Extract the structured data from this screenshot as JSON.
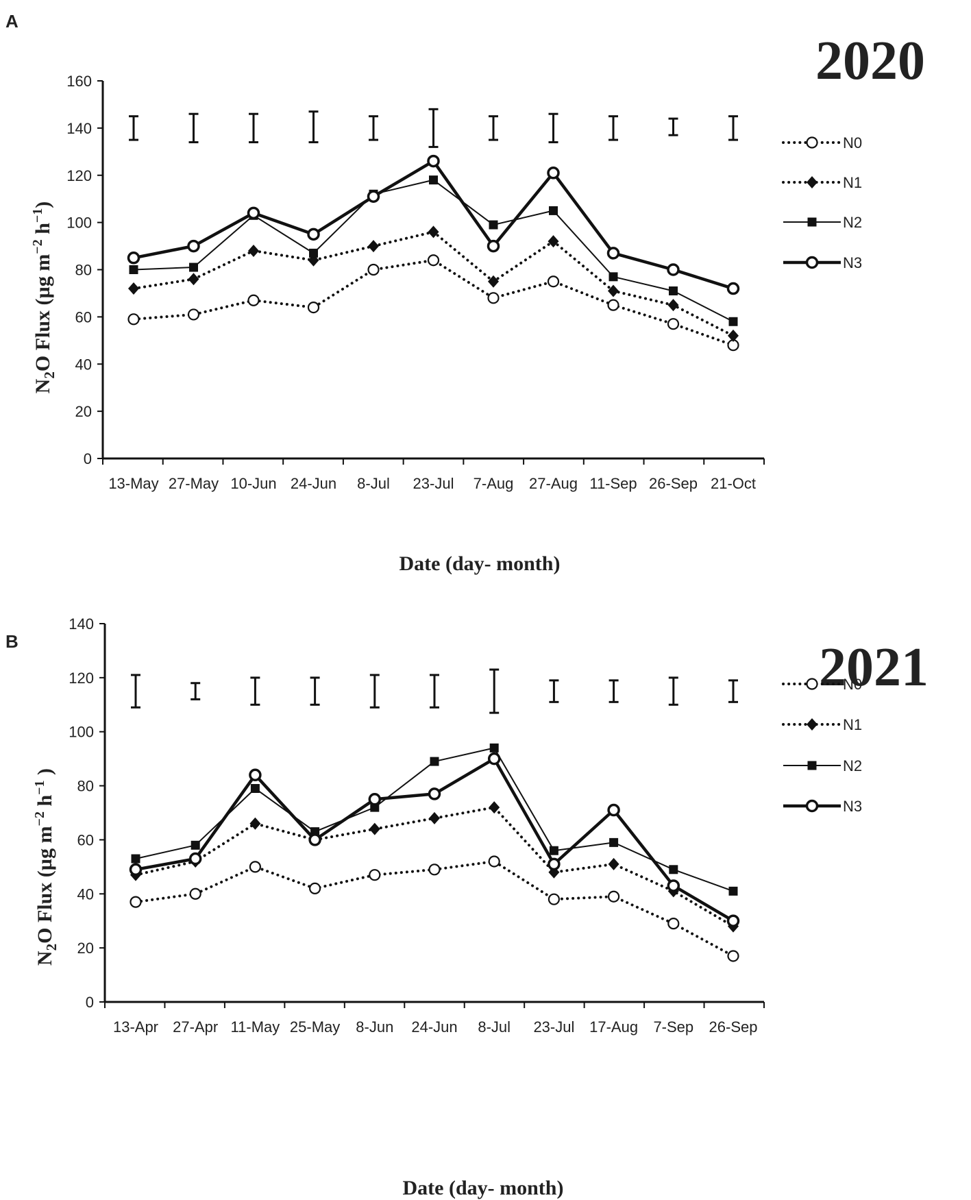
{
  "chart_data": [
    {
      "panel_label": "A",
      "year_label": "2020",
      "type": "line",
      "ylabel_parts": [
        "N",
        "2",
        "O Flux (µg m",
        "−2",
        " h",
        "−1",
        ")"
      ],
      "xlabel": "Date (day- month)",
      "ylim": [
        0,
        160
      ],
      "yticks": [
        0,
        20,
        40,
        60,
        80,
        100,
        120,
        140,
        160
      ],
      "categories": [
        "13-May",
        "27-May",
        "10-Jun",
        "24-Jun",
        "8-Jul",
        "23-Jul",
        "7-Aug",
        "27-Aug",
        "11-Sep",
        "26-Sep",
        "21-Oct"
      ],
      "error_bars": [
        {
          "low": 135,
          "high": 145
        },
        {
          "low": 134,
          "high": 146
        },
        {
          "low": 134,
          "high": 146
        },
        {
          "low": 134,
          "high": 147
        },
        {
          "low": 135,
          "high": 145
        },
        {
          "low": 132,
          "high": 148
        },
        {
          "low": 135,
          "high": 145
        },
        {
          "low": 134,
          "high": 146
        },
        {
          "low": 135,
          "high": 145
        },
        {
          "low": 137,
          "high": 144
        },
        {
          "low": 135,
          "high": 145
        }
      ],
      "series": [
        {
          "name": "N0",
          "style": "dotted",
          "marker": "open-circle",
          "values": [
            59,
            61,
            67,
            64,
            80,
            84,
            68,
            75,
            65,
            57,
            48
          ]
        },
        {
          "name": "N1",
          "style": "dotted",
          "marker": "filled-diamond",
          "values": [
            72,
            76,
            88,
            84,
            90,
            96,
            75,
            92,
            71,
            65,
            52
          ]
        },
        {
          "name": "N2",
          "style": "thin-solid",
          "marker": "filled-square",
          "values": [
            80,
            81,
            103,
            87,
            112,
            118,
            99,
            105,
            77,
            71,
            58
          ]
        },
        {
          "name": "N3",
          "style": "thick-solid",
          "marker": "ring-circle",
          "values": [
            85,
            90,
            104,
            95,
            111,
            126,
            90,
            121,
            87,
            80,
            72
          ]
        }
      ]
    },
    {
      "panel_label": "B",
      "year_label": "2021",
      "type": "line",
      "ylabel_parts": [
        "N",
        "2",
        "O Flux (µg m",
        "−2",
        " h",
        "−1",
        " )"
      ],
      "xlabel": "Date (day- month)",
      "ylim": [
        0,
        140
      ],
      "yticks": [
        0,
        20,
        40,
        60,
        80,
        100,
        120,
        140
      ],
      "categories": [
        "13-Apr",
        "27-Apr",
        "11-May",
        "25-May",
        "8-Jun",
        "24-Jun",
        "8-Jul",
        "23-Jul",
        "17-Aug",
        "7-Sep",
        "26-Sep"
      ],
      "error_bars": [
        {
          "low": 109,
          "high": 121
        },
        {
          "low": 112,
          "high": 118
        },
        {
          "low": 110,
          "high": 120
        },
        {
          "low": 110,
          "high": 120
        },
        {
          "low": 109,
          "high": 121
        },
        {
          "low": 109,
          "high": 121
        },
        {
          "low": 107,
          "high": 123
        },
        {
          "low": 111,
          "high": 119
        },
        {
          "low": 111,
          "high": 119
        },
        {
          "low": 110,
          "high": 120
        },
        {
          "low": 111,
          "high": 119
        }
      ],
      "series": [
        {
          "name": "N0",
          "style": "dotted",
          "marker": "open-circle",
          "values": [
            37,
            40,
            50,
            42,
            47,
            49,
            52,
            38,
            39,
            29,
            17
          ]
        },
        {
          "name": "N1",
          "style": "dotted",
          "marker": "filled-diamond",
          "values": [
            47,
            52,
            66,
            60,
            64,
            68,
            72,
            48,
            51,
            41,
            28
          ]
        },
        {
          "name": "N2",
          "style": "thin-solid",
          "marker": "filled-square",
          "values": [
            53,
            58,
            79,
            63,
            72,
            89,
            94,
            56,
            59,
            49,
            41
          ]
        },
        {
          "name": "N3",
          "style": "thick-solid",
          "marker": "ring-circle",
          "values": [
            49,
            53,
            84,
            60,
            75,
            77,
            90,
            51,
            71,
            43,
            30
          ]
        }
      ]
    }
  ]
}
